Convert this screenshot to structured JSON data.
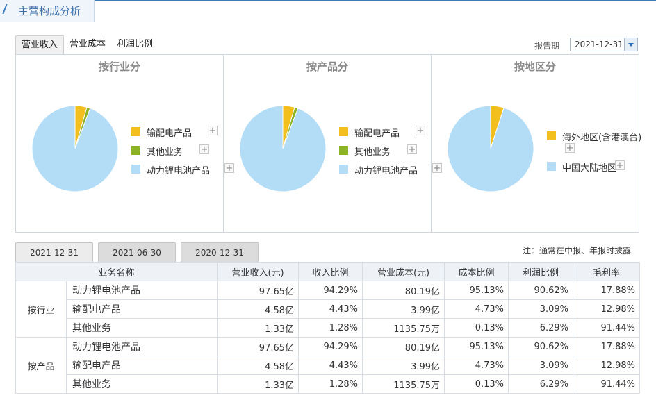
{
  "header": {
    "title": "主营构成分析"
  },
  "subtabs": [
    "营业收入",
    "营业成本",
    "利润比例"
  ],
  "period": {
    "label": "报告期",
    "value": "2021-12-31"
  },
  "charts": [
    {
      "title": "按行业分",
      "legend": [
        {
          "label": "输配电产品",
          "color": "#f2bf1e"
        },
        {
          "label": "其他业务",
          "color": "#8cb323"
        },
        {
          "label": "动力锂电池产品",
          "color": "#b3dcf7"
        }
      ]
    },
    {
      "title": "按产品分",
      "legend": [
        {
          "label": "输配电产品",
          "color": "#f2bf1e"
        },
        {
          "label": "其他业务",
          "color": "#8cb323"
        },
        {
          "label": "动力锂电池产品",
          "color": "#b3dcf7"
        }
      ]
    },
    {
      "title": "按地区分",
      "legend": [
        {
          "label": "海外地区(含港澳台)",
          "color": "#f2bf1e"
        },
        {
          "label": "中国大陆地区",
          "color": "#b3dcf7"
        }
      ]
    }
  ],
  "chart_data": [
    {
      "type": "pie",
      "title": "按行业分",
      "categories": [
        "输配电产品",
        "其他业务",
        "动力锂电池产品"
      ],
      "values": [
        4.43,
        1.28,
        94.29
      ],
      "colors": [
        "#f2bf1e",
        "#8cb323",
        "#b3dcf7"
      ]
    },
    {
      "type": "pie",
      "title": "按产品分",
      "categories": [
        "输配电产品",
        "其他业务",
        "动力锂电池产品"
      ],
      "values": [
        4.43,
        1.28,
        94.29
      ],
      "colors": [
        "#f2bf1e",
        "#8cb323",
        "#b3dcf7"
      ]
    },
    {
      "type": "pie",
      "title": "按地区分",
      "categories": [
        "海外地区(含港澳台)",
        "中国大陆地区"
      ],
      "values": [
        5,
        95
      ],
      "colors": [
        "#f2bf1e",
        "#b3dcf7"
      ]
    }
  ],
  "datetabs": [
    "2021-12-31",
    "2021-06-30",
    "2020-12-31"
  ],
  "note": "注：通常在中报、年报时披露",
  "table": {
    "headers": [
      "业务名称",
      "营业收入(元)",
      "收入比例",
      "营业成本(元)",
      "成本比例",
      "利润比例",
      "毛利率"
    ],
    "groups": [
      {
        "name": "按行业",
        "rows": [
          [
            "动力锂电池产品",
            "97.65亿",
            "94.29%",
            "80.19亿",
            "95.13%",
            "90.62%",
            "17.88%"
          ],
          [
            "输配电产品",
            "4.58亿",
            "4.43%",
            "3.99亿",
            "4.73%",
            "3.09%",
            "12.98%"
          ],
          [
            "其他业务",
            "1.33亿",
            "1.28%",
            "1135.75万",
            "0.13%",
            "6.29%",
            "91.44%"
          ]
        ]
      },
      {
        "name": "按产品",
        "rows": [
          [
            "动力锂电池产品",
            "97.65亿",
            "94.29%",
            "80.19亿",
            "95.13%",
            "90.62%",
            "17.88%"
          ],
          [
            "输配电产品",
            "4.58亿",
            "4.43%",
            "3.99亿",
            "4.73%",
            "3.09%",
            "12.98%"
          ],
          [
            "其他业务",
            "1.33亿",
            "1.28%",
            "1135.75万",
            "0.13%",
            "6.29%",
            "91.44%"
          ]
        ]
      }
    ]
  }
}
